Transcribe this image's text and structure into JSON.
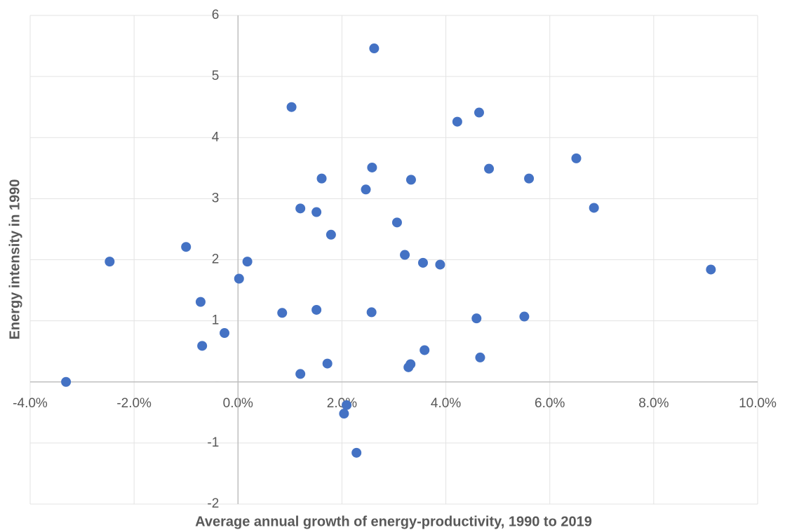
{
  "chart_data": {
    "type": "scatter",
    "x_label": "Average annual growth of energy-productivity, 1990 to 2019",
    "y_label": "Energy intensity in 1990",
    "color": "#4472c4",
    "grid": true,
    "xlim": [
      -4,
      10
    ],
    "xticks": [
      {
        "value": -4,
        "label": "-4.0%"
      },
      {
        "value": -2,
        "label": "-2.0%"
      },
      {
        "value": 0,
        "label": "0.0%"
      },
      {
        "value": 2,
        "label": "2.0%"
      },
      {
        "value": 4,
        "label": "4.0%"
      },
      {
        "value": 6,
        "label": "6.0%"
      },
      {
        "value": 8,
        "label": "8.0%"
      },
      {
        "value": 10,
        "label": "10.0%"
      }
    ],
    "ylim": [
      -2,
      6
    ],
    "yticks": [
      -2,
      -1,
      {
        "value": 0,
        "label": "-"
      },
      1,
      2,
      3,
      4,
      5,
      6
    ],
    "x": [
      -3.31,
      -2.47,
      -1.0,
      -0.72,
      -0.69,
      -0.26,
      0.02,
      0.18,
      0.85,
      1.03,
      1.2,
      1.2,
      1.51,
      1.51,
      1.61,
      1.72,
      1.79,
      2.04,
      2.09,
      2.28,
      2.46,
      2.58,
      2.57,
      2.62,
      3.06,
      3.21,
      3.28,
      3.32,
      3.33,
      3.56,
      3.59,
      3.89,
      4.22,
      4.59,
      4.64,
      4.66,
      4.83,
      5.51,
      5.6,
      6.51,
      6.85,
      9.1
    ],
    "y": [
      0,
      1.97,
      2.21,
      1.31,
      0.59,
      0.8,
      1.69,
      1.97,
      1.13,
      4.5,
      2.84,
      0.13,
      2.78,
      1.18,
      3.33,
      0.3,
      2.41,
      -0.52,
      -0.38,
      -1.16,
      3.15,
      3.51,
      1.14,
      5.46,
      2.61,
      2.08,
      0.24,
      0.29,
      3.31,
      1.95,
      0.52,
      1.92,
      4.26,
      1.04,
      4.41,
      0.4,
      3.49,
      1.07,
      3.33,
      3.66,
      2.85,
      1.84
    ]
  }
}
